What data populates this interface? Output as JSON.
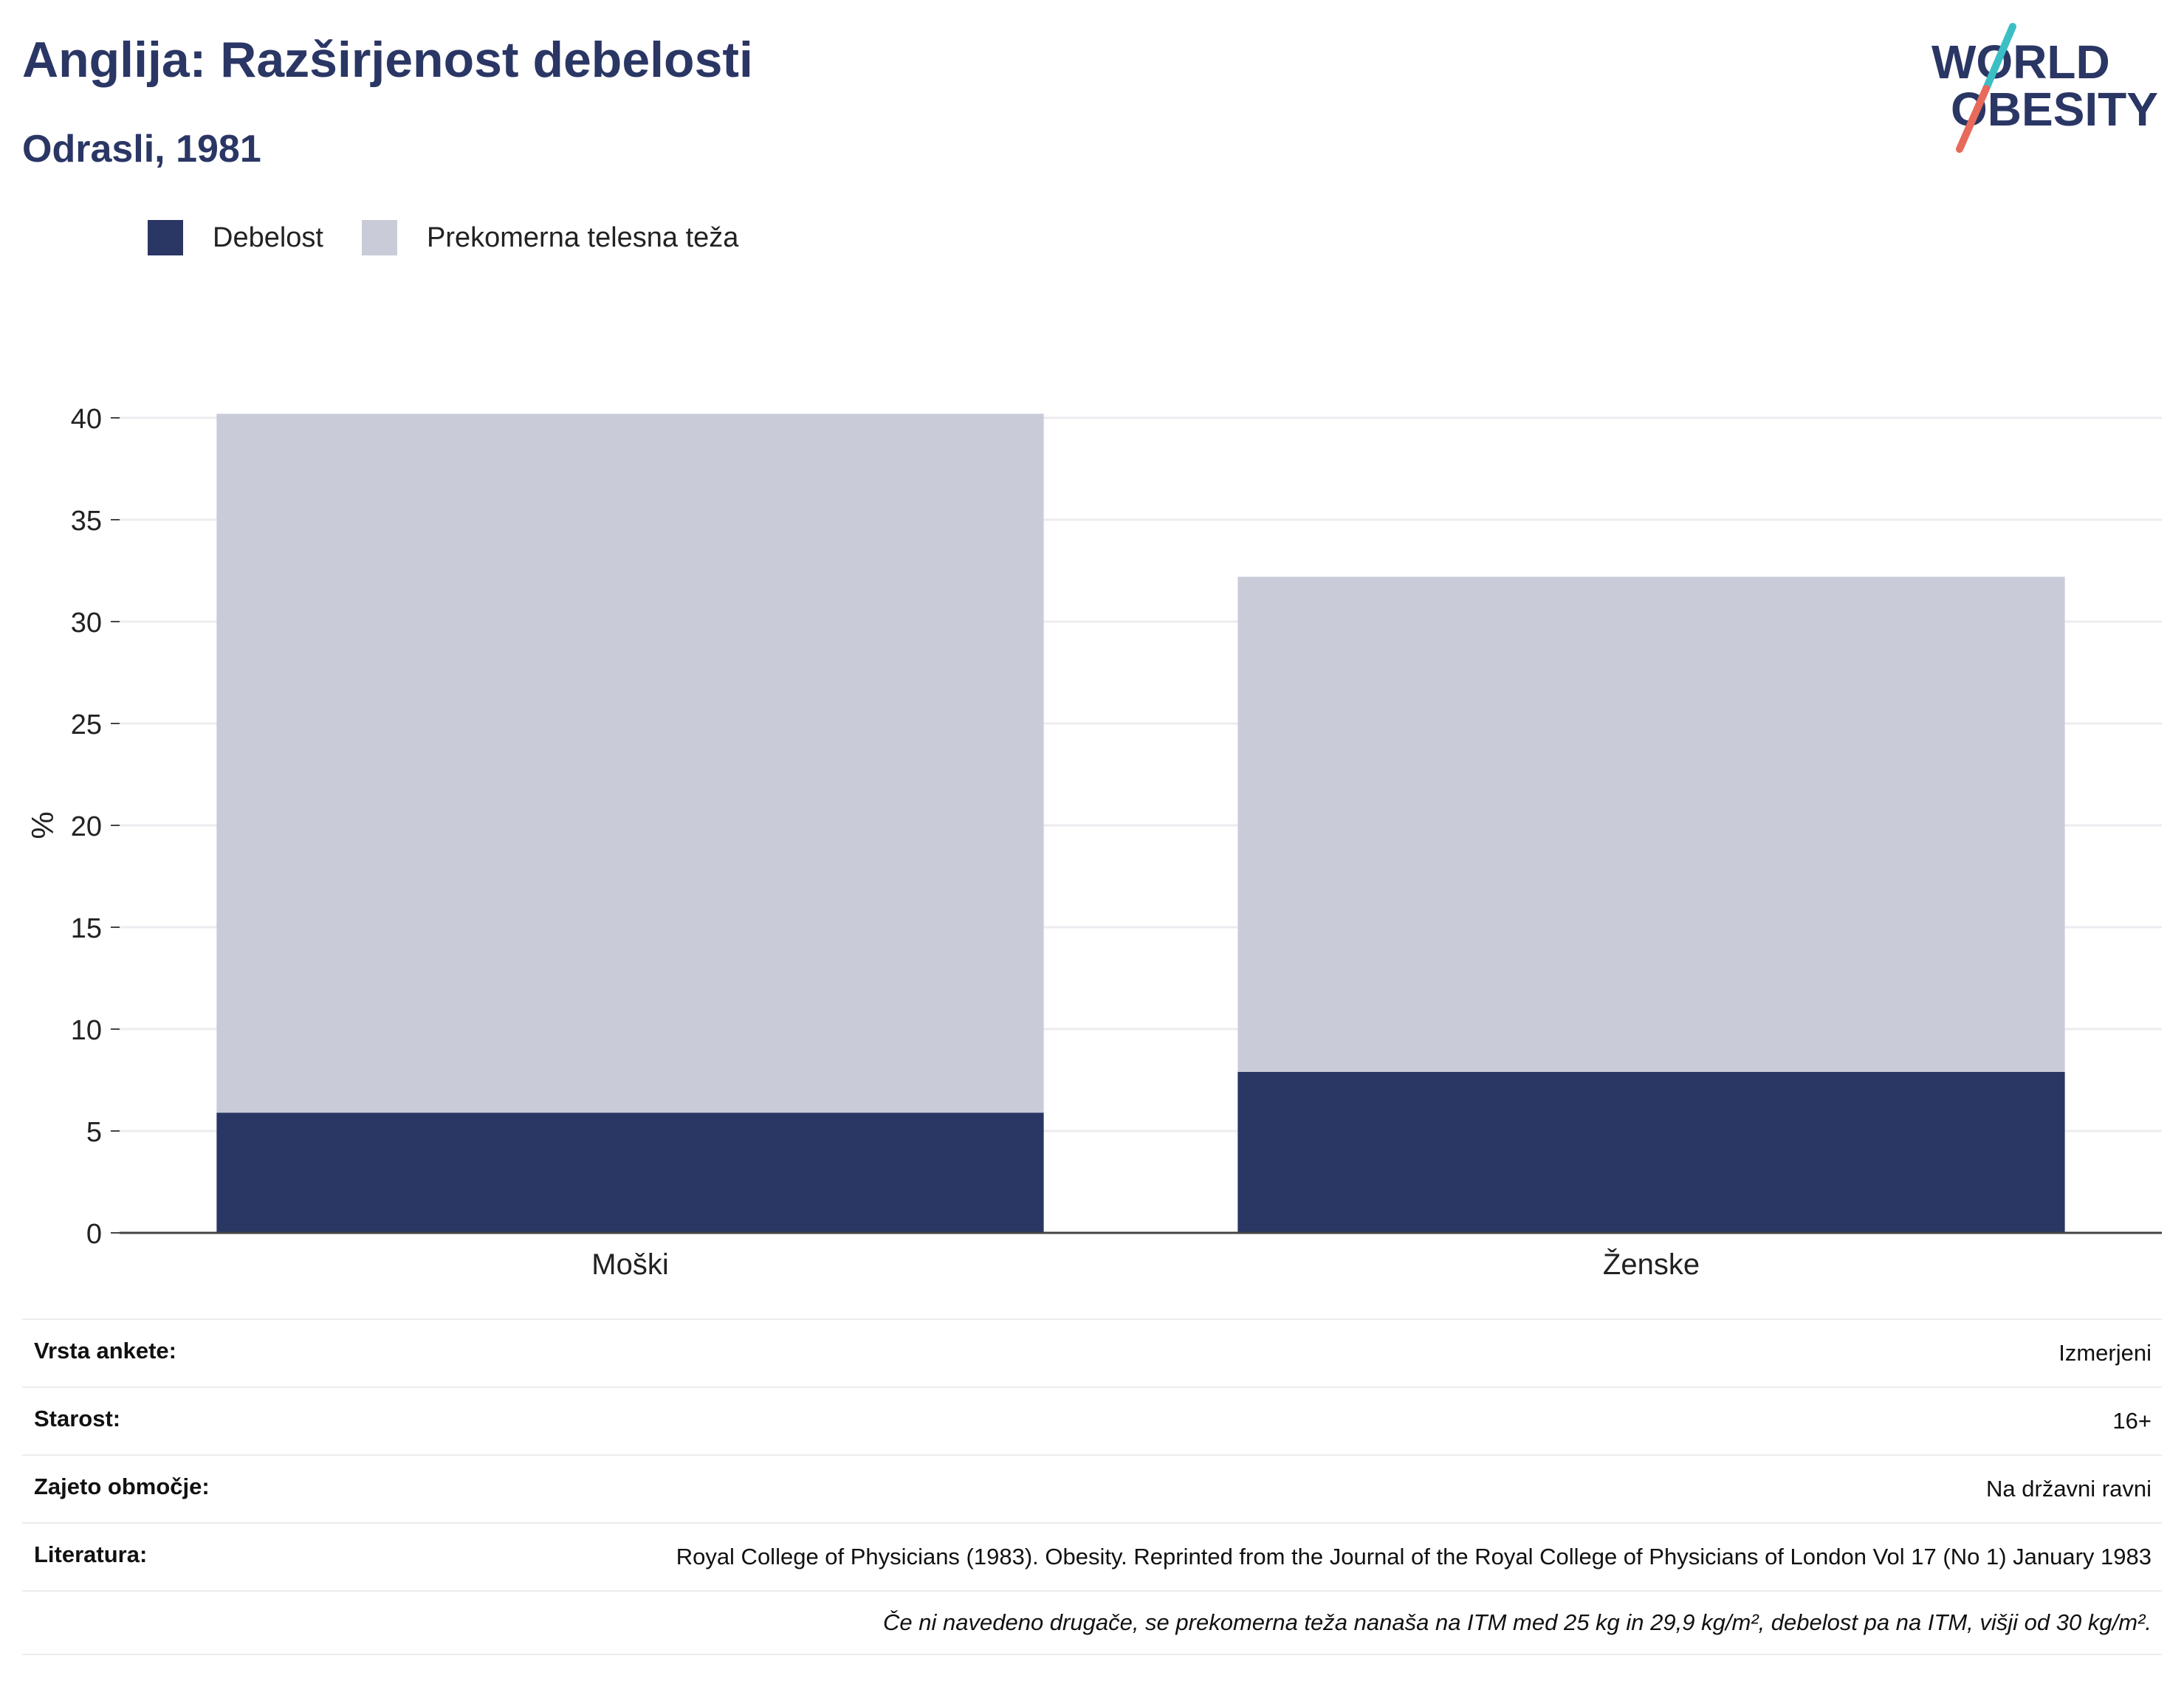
{
  "header": {
    "title": "Anglija: Razširjenost debelosti",
    "subtitle": "Odrasli, 1981"
  },
  "logo": {
    "line1": "WORLD",
    "line2": "OBESITY",
    "colors": {
      "text": "#2a3664",
      "slash_top": "#3bbfc5",
      "slash_bottom": "#e86a5a"
    }
  },
  "legend": [
    {
      "label": "Debelost",
      "color": "#2a3664"
    },
    {
      "label": "Prekomerna telesna teža",
      "color": "#c9ccd8"
    }
  ],
  "chart_data": {
    "type": "bar",
    "stacked": true,
    "categories": [
      "Moški",
      "Ženske"
    ],
    "series": [
      {
        "name": "Debelost",
        "values": [
          5.9,
          7.9
        ],
        "color": "#2a3664"
      },
      {
        "name": "Prekomerna telesna teža",
        "values": [
          34.3,
          24.3
        ],
        "color": "#c9ccd8"
      }
    ],
    "ylabel": "%",
    "ylim": [
      0,
      40
    ],
    "yticks": [
      0,
      5,
      10,
      15,
      20,
      25,
      30,
      35,
      40
    ],
    "grid": true,
    "legend_position": "top-left"
  },
  "info": {
    "rows": [
      {
        "key": "Vrsta ankete:",
        "value": "Izmerjeni"
      },
      {
        "key": "Starost:",
        "value": "16+"
      },
      {
        "key": "Zajeto območje:",
        "value": "Na državni ravni"
      },
      {
        "key": "Literatura:",
        "value": "Royal College of Physicians (1983). Obesity. Reprinted from the Journal of the Royal College of Physicians of London Vol 17 (No 1) January 1983"
      }
    ],
    "note": "Če ni navedeno drugače, se prekomerna teža nanaša na ITM med 25 kg in 29,9 kg/m², debelost pa na ITM, višji od 30 kg/m²."
  }
}
